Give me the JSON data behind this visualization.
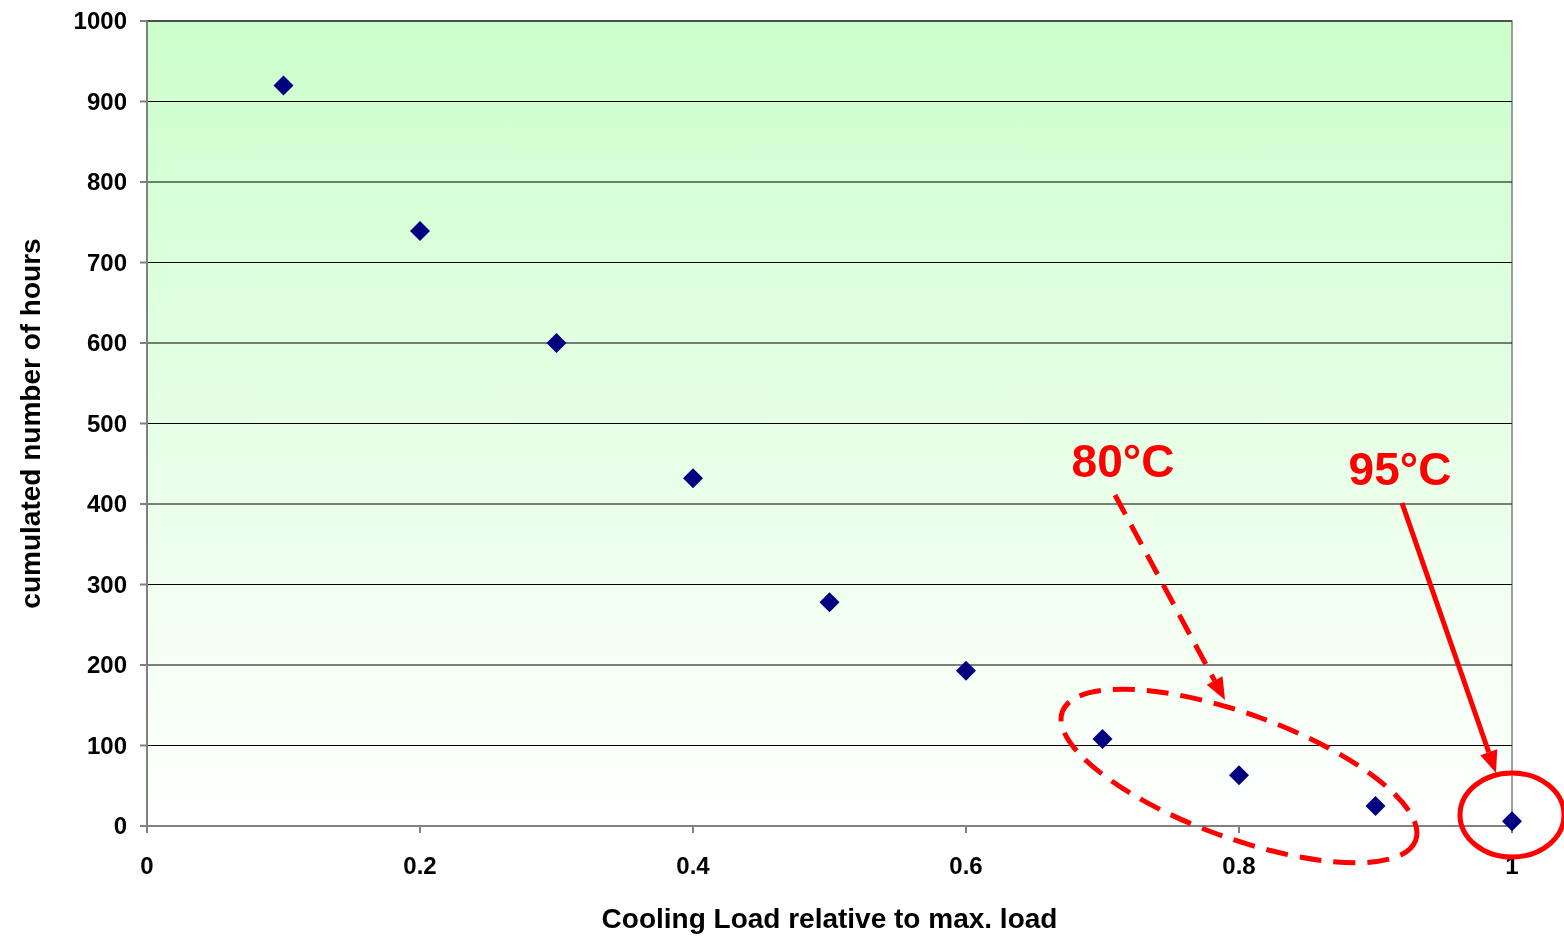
{
  "chart_data": {
    "type": "scatter",
    "xlabel": "Cooling Load relative to max. load",
    "ylabel": "cumulated number of hours",
    "x": [
      0.1,
      0.2,
      0.3,
      0.4,
      0.5,
      0.6,
      0.7,
      0.8,
      0.9,
      1
    ],
    "series": [
      {
        "color": "#000080",
        "values": [
          920,
          739,
          600,
          432,
          278,
          193,
          108,
          63,
          25,
          6
        ]
      }
    ],
    "xlim": [
      0,
      1
    ],
    "xticks": [
      0,
      0.2,
      0.4,
      0.6,
      0.8,
      1
    ],
    "ylim": [
      0,
      1000
    ],
    "yticks": [
      0,
      100,
      200,
      300,
      400,
      500,
      600,
      700,
      800,
      900,
      1000
    ],
    "grid": "y",
    "marker": "diamond",
    "annotations": [
      "80°C",
      "95°C"
    ]
  }
}
